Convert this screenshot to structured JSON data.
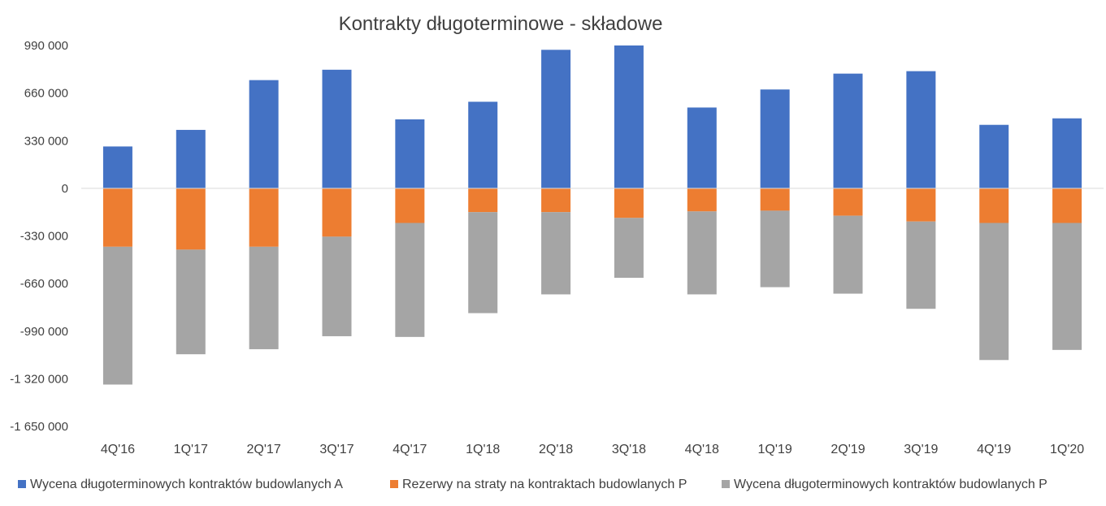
{
  "chart_data": {
    "type": "bar",
    "stacked": true,
    "title": "Kontrakty długoterminowe - składowe",
    "xlabel": "",
    "ylabel": "",
    "categories": [
      "4Q'16",
      "1Q'17",
      "2Q'17",
      "3Q'17",
      "4Q'17",
      "1Q'18",
      "2Q'18",
      "3Q'18",
      "4Q'18",
      "1Q'19",
      "2Q'19",
      "3Q'19",
      "4Q'19",
      "1Q'20"
    ],
    "y_ticks": [
      990000,
      660000,
      330000,
      0,
      -330000,
      -660000,
      -990000,
      -1320000,
      -1650000
    ],
    "y_tick_labels": [
      "990 000",
      "660 000",
      "330 000",
      "0",
      "-330 000",
      "-660 000",
      "-990 000",
      "-1 320 000",
      "-1 650 000"
    ],
    "ylim": [
      -1650000,
      990000
    ],
    "grid": false,
    "legend_position": "bottom",
    "series": [
      {
        "name": "Wycena długoterminowych kontraktów budowlanych A",
        "color": "#4472C4",
        "values": [
          290000,
          405000,
          750000,
          822000,
          478000,
          600000,
          960000,
          990000,
          560000,
          685000,
          795000,
          812000,
          440000,
          485000
        ]
      },
      {
        "name": "Rezerwy na straty na kontraktach budowlanych P",
        "color": "#ED7D31",
        "values": [
          -405000,
          -425000,
          -405000,
          -335000,
          -240000,
          -165000,
          -165000,
          -205000,
          -160000,
          -155000,
          -190000,
          -230000,
          -240000,
          -240000
        ]
      },
      {
        "name": "Wycena długoterminowych kontraktów budowlanych P",
        "color": "#A5A5A5",
        "values": [
          -955000,
          -725000,
          -710000,
          -690000,
          -790000,
          -700000,
          -570000,
          -415000,
          -575000,
          -530000,
          -540000,
          -605000,
          -950000,
          -880000
        ]
      }
    ]
  }
}
